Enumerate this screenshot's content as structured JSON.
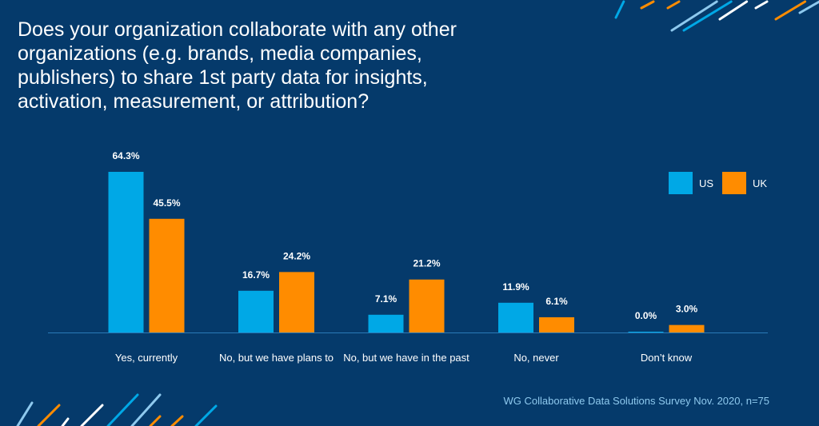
{
  "title": "Does your organization collaborate with any other organizations (e.g. brands, media companies, publishers) to share 1st party data for insights, activation, measurement, or attribution?",
  "source": "WG Collaborative Data Solutions Survey Nov. 2020, n=75",
  "colors": {
    "background": "#053a6b",
    "US": "#00a8e6",
    "UK": "#ff8c00"
  },
  "chart_data": {
    "type": "bar",
    "categories": [
      "Yes, currently",
      "No, but we have plans to",
      "No, but we have in the past",
      "No, never",
      "Don’t know"
    ],
    "series": [
      {
        "name": "US",
        "values": [
          64.3,
          16.7,
          7.1,
          11.9,
          0.0
        ],
        "labels": [
          "64.3%",
          "16.7%",
          "7.1%",
          "11.9%",
          "0.0%"
        ]
      },
      {
        "name": "UK",
        "values": [
          45.5,
          24.2,
          21.2,
          6.1,
          3.0
        ],
        "labels": [
          "45.5%",
          "24.2%",
          "21.2%",
          "6.1%",
          "3.0%"
        ]
      }
    ],
    "unit": "%",
    "ylim": [
      0,
      70
    ],
    "grid": false,
    "legend": "top-right"
  }
}
